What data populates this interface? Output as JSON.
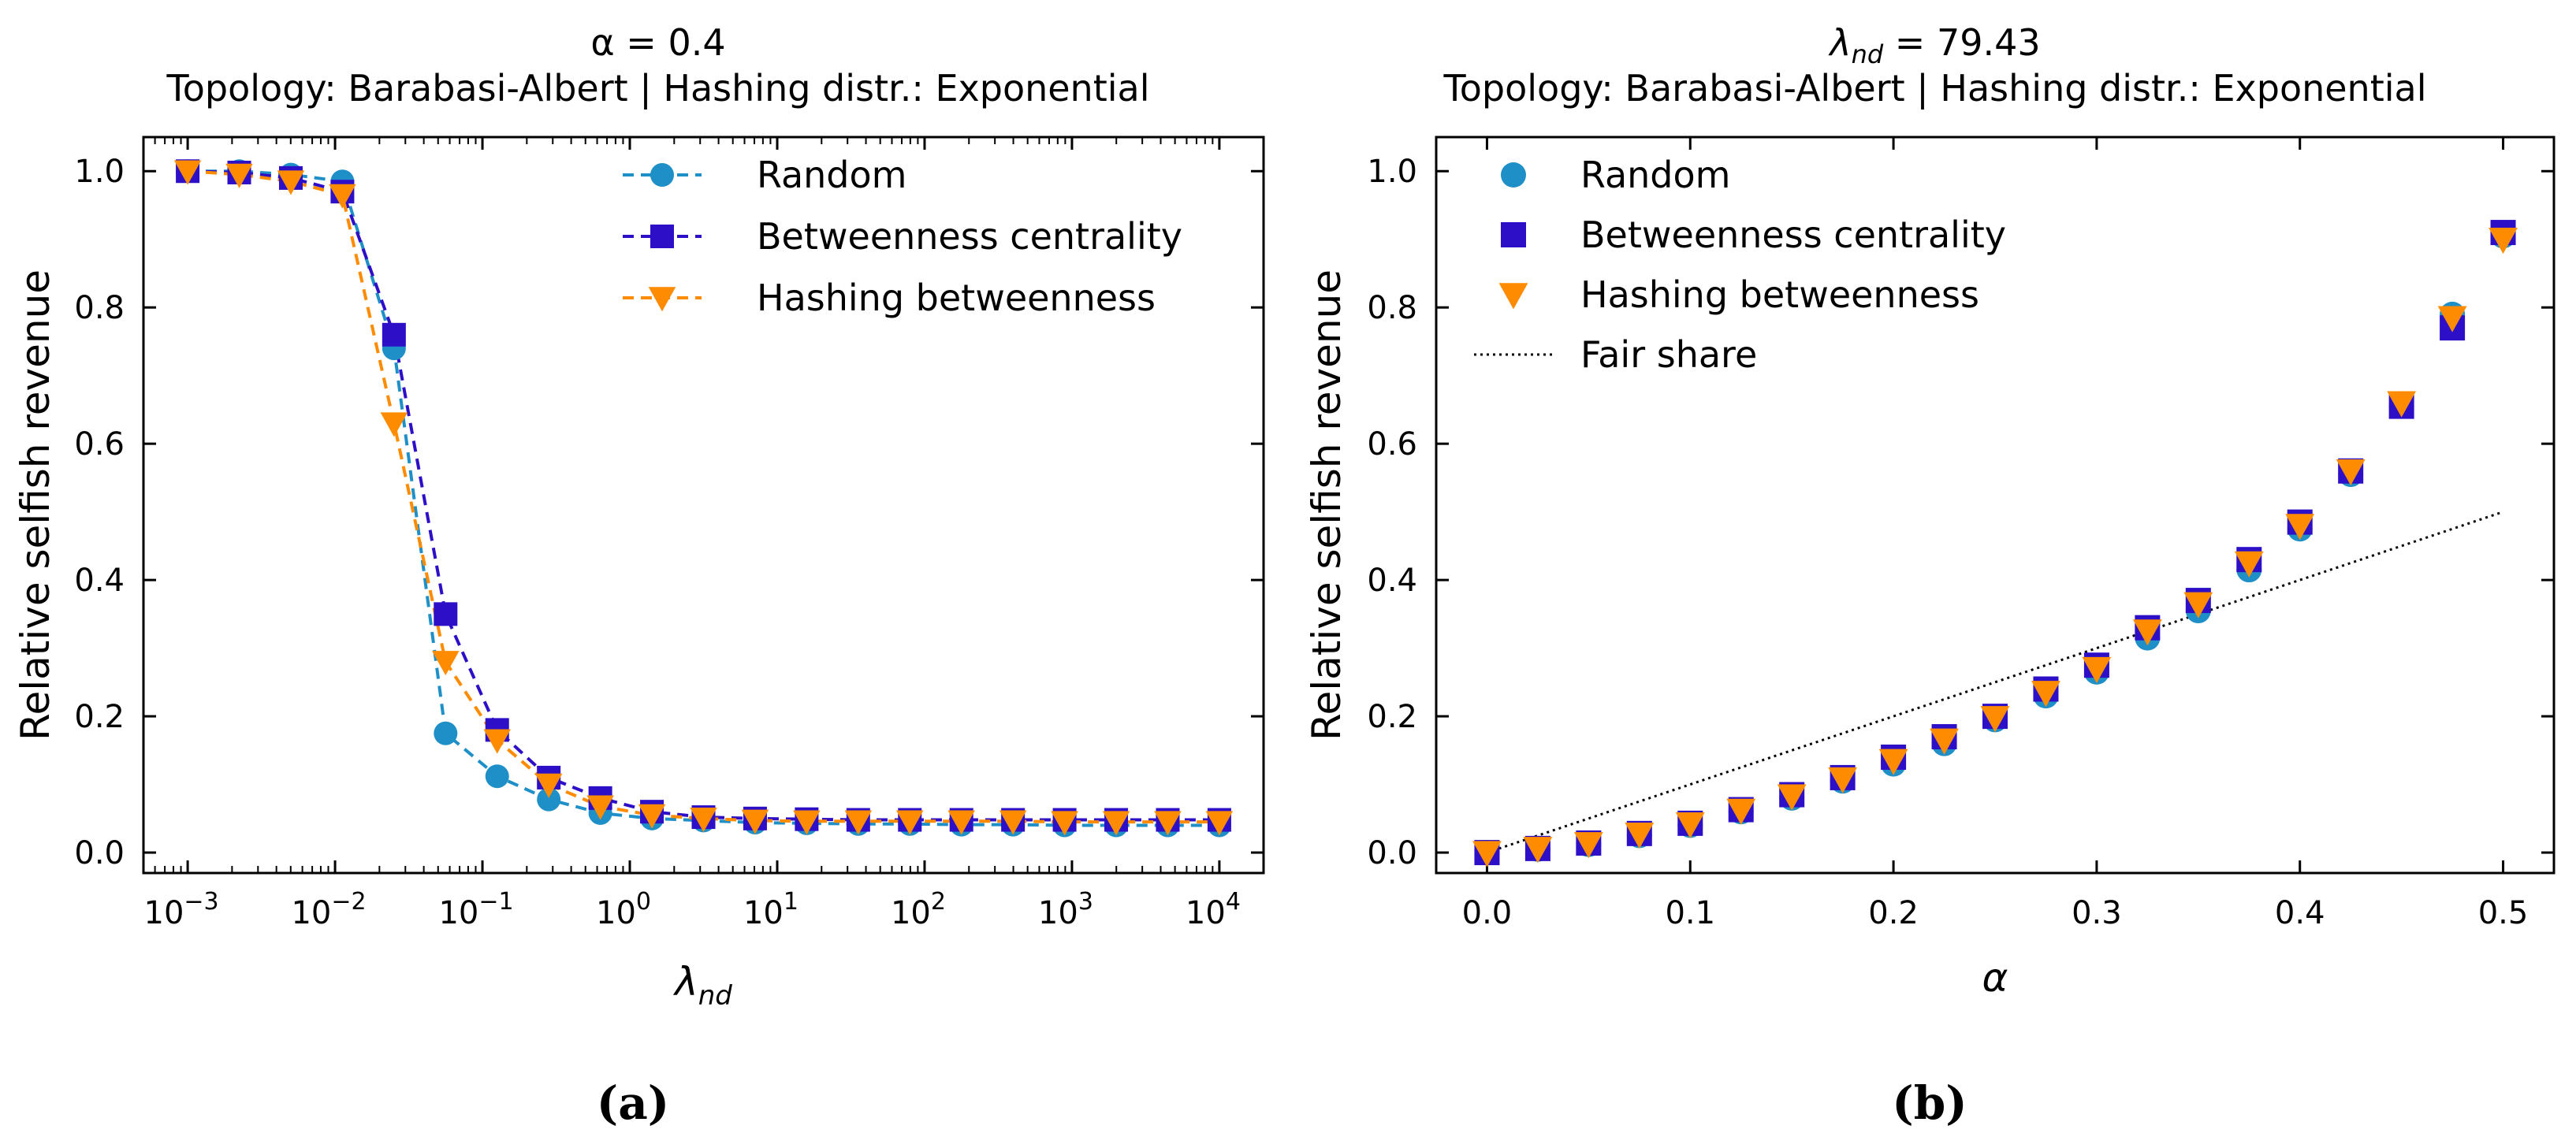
{
  "chart_data": [
    {
      "type": "line",
      "panel_caption": "(a)",
      "title_line1": "α = 0.4",
      "title_line2": "Topology: Barabasi-Albert | Hashing distr.: Exponential",
      "xlabel": "λ",
      "xlabel_sub": "nd",
      "ylabel": "Relative selfish revenue",
      "xscale": "log",
      "xlim_exp": [
        -3.3,
        4.3
      ],
      "ylim": [
        -0.03,
        1.05
      ],
      "xtick_exponents": [
        -3,
        -2,
        -1,
        0,
        1,
        2,
        3,
        4
      ],
      "xtick_base": "10",
      "xtick_labels": [
        "10",
        "10",
        "10",
        "10",
        "10",
        "10",
        "10",
        "10"
      ],
      "xtick_sup": [
        "−3",
        "−2",
        "−1",
        "0",
        "1",
        "2",
        "3",
        "4"
      ],
      "yticks": [
        0.0,
        0.2,
        0.4,
        0.6,
        0.8,
        1.0
      ],
      "ytick_labels": [
        "0.0",
        "0.2",
        "0.4",
        "0.6",
        "0.8",
        "1.0"
      ],
      "legend_position": "upper-right",
      "x_exponents": [
        -3,
        -2.65,
        -2.3,
        -1.95,
        -1.6,
        -1.25,
        -0.9,
        -0.55,
        -0.2,
        0.15,
        0.5,
        0.85,
        1.2,
        1.55,
        1.9,
        2.25,
        2.6,
        2.95,
        3.3,
        3.65,
        4.0
      ],
      "series": [
        {
          "name": "Random",
          "marker": "circle",
          "color": "#1f8fc8",
          "linestyle": "dashed",
          "values": [
            1.0,
            1.0,
            0.995,
            0.985,
            0.74,
            0.175,
            0.112,
            0.078,
            0.058,
            0.05,
            0.047,
            0.044,
            0.043,
            0.042,
            0.042,
            0.041,
            0.041,
            0.04,
            0.04,
            0.04,
            0.04
          ]
        },
        {
          "name": "Betweenness centrality",
          "marker": "square",
          "color": "#2d0fc8",
          "linestyle": "dashed",
          "values": [
            1.0,
            0.998,
            0.99,
            0.97,
            0.76,
            0.35,
            0.18,
            0.11,
            0.08,
            0.06,
            0.052,
            0.05,
            0.049,
            0.048,
            0.048,
            0.048,
            0.048,
            0.048,
            0.048,
            0.048,
            0.048
          ]
        },
        {
          "name": "Hashing betweenness",
          "marker": "triangle-down",
          "color": "#ff8c00",
          "linestyle": "dashed",
          "values": [
            1.0,
            0.995,
            0.985,
            0.965,
            0.63,
            0.28,
            0.165,
            0.1,
            0.068,
            0.055,
            0.05,
            0.047,
            0.046,
            0.046,
            0.046,
            0.046,
            0.046,
            0.045,
            0.045,
            0.045,
            0.045
          ]
        }
      ]
    },
    {
      "type": "scatter",
      "panel_caption": "(b)",
      "title_line1_main": "λ",
      "title_line1_sub": "nd",
      "title_line1_rest": " = 79.43",
      "title_line2": "Topology: Barabasi-Albert | Hashing distr.: Exponential",
      "xlabel": "α",
      "ylabel": "Relative selfish revenue",
      "xlim": [
        -0.025,
        0.525
      ],
      "ylim": [
        -0.03,
        1.05
      ],
      "xticks": [
        0.0,
        0.1,
        0.2,
        0.3,
        0.4,
        0.5
      ],
      "xtick_labels": [
        "0.0",
        "0.1",
        "0.2",
        "0.3",
        "0.4",
        "0.5"
      ],
      "yticks": [
        0.0,
        0.2,
        0.4,
        0.6,
        0.8,
        1.0
      ],
      "ytick_labels": [
        "0.0",
        "0.2",
        "0.4",
        "0.6",
        "0.8",
        "1.0"
      ],
      "legend_position": "upper-left",
      "x": [
        0.0,
        0.025,
        0.05,
        0.075,
        0.1,
        0.125,
        0.15,
        0.175,
        0.2,
        0.225,
        0.25,
        0.275,
        0.3,
        0.325,
        0.35,
        0.375,
        0.4,
        0.425,
        0.45,
        0.475,
        0.5
      ],
      "series": [
        {
          "name": "Random",
          "marker": "circle",
          "color": "#1f8fc8",
          "values": [
            0.0,
            0.005,
            0.012,
            0.025,
            0.04,
            0.06,
            0.08,
            0.105,
            0.13,
            0.16,
            0.195,
            0.23,
            0.265,
            0.315,
            0.355,
            0.415,
            0.475,
            0.555,
            0.655,
            0.79,
            0.905
          ]
        },
        {
          "name": "Betweenness centrality",
          "marker": "square",
          "color": "#2d0fc8",
          "values": [
            0.0,
            0.006,
            0.014,
            0.028,
            0.043,
            0.063,
            0.085,
            0.11,
            0.14,
            0.17,
            0.2,
            0.24,
            0.275,
            0.33,
            0.37,
            0.43,
            0.485,
            0.56,
            0.655,
            0.77,
            0.91
          ]
        },
        {
          "name": "Hashing betweenness",
          "marker": "triangle-down",
          "color": "#ff8c00",
          "values": [
            0.0,
            0.006,
            0.013,
            0.027,
            0.042,
            0.062,
            0.083,
            0.108,
            0.135,
            0.165,
            0.198,
            0.235,
            0.27,
            0.325,
            0.365,
            0.425,
            0.48,
            0.56,
            0.66,
            0.785,
            0.9
          ]
        },
        {
          "name": "Fair share",
          "marker": "none",
          "color": "#000000",
          "linestyle": "dotted",
          "values": [
            0.0,
            0.025,
            0.05,
            0.075,
            0.1,
            0.125,
            0.15,
            0.175,
            0.2,
            0.225,
            0.25,
            0.275,
            0.3,
            0.325,
            0.35,
            0.375,
            0.4,
            0.425,
            0.45,
            0.475,
            0.5
          ]
        }
      ]
    }
  ]
}
